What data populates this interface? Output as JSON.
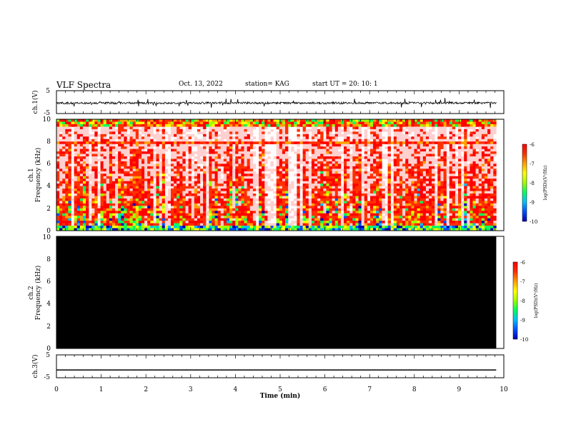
{
  "header": {
    "title": "VLF Spectra",
    "date": "Oct. 13, 2022",
    "station": "station= KAG",
    "start": "start UT =  20: 10: 1"
  },
  "colors": {
    "colormap": [
      "#0000b0",
      "#0050ff",
      "#00c0ff",
      "#00ff60",
      "#a0ff00",
      "#ffff00",
      "#ffa000",
      "#ff3000",
      "#ff0000",
      "#ffd0d0",
      "#ffffff"
    ],
    "ch2_fill": "#000000",
    "background": "#ffffff"
  },
  "chart_data": [
    {
      "type": "line",
      "ylabel": "ch.1(V)",
      "ylim": [
        -5,
        5
      ],
      "yticks": [
        "5",
        "-5"
      ],
      "xlim": [
        0,
        10
      ],
      "series": [
        {
          "description": "waveform",
          "level": -0.4
        }
      ]
    },
    {
      "type": "heatmap",
      "ylabel_line1": "ch.1",
      "ylabel_line2": "Frequency (kHz)",
      "ylim": [
        0,
        10
      ],
      "yticks": [
        "0",
        "2",
        "4",
        "6",
        "8",
        "10"
      ],
      "xlim": [
        0,
        10
      ],
      "data_end_min": 9.83,
      "colorbar": {
        "label": "log(PSD)(V²/Hz)",
        "range": [
          -10,
          -6
        ],
        "ticks": [
          "-6",
          "-7",
          "-8",
          "-9",
          "-10"
        ]
      }
    },
    {
      "type": "heatmap",
      "ylabel_line1": "ch.2",
      "ylabel_line2": "Frequency (kHz)",
      "ylim": [
        0,
        10
      ],
      "yticks": [
        "0",
        "2",
        "4",
        "6",
        "8",
        "10"
      ],
      "xlim": [
        0,
        10
      ],
      "data_end_min": 9.83,
      "colorbar": {
        "label": "log(PSD)(V²/Hz)",
        "range": [
          -10,
          -6
        ],
        "ticks": [
          "-6",
          "-7",
          "-8",
          "-9",
          "-10"
        ]
      }
    },
    {
      "type": "line",
      "ylabel": "ch.3(V)",
      "ylim": [
        -5,
        5
      ],
      "yticks": [
        "5",
        "-5"
      ],
      "xlim": [
        0,
        10
      ],
      "series": [
        {
          "description": "flat",
          "level": -1.6
        }
      ]
    }
  ],
  "xaxis": {
    "label": "Time (min)",
    "ticks": [
      "0",
      "1",
      "2",
      "3",
      "4",
      "5",
      "6",
      "7",
      "8",
      "9",
      "10"
    ]
  }
}
